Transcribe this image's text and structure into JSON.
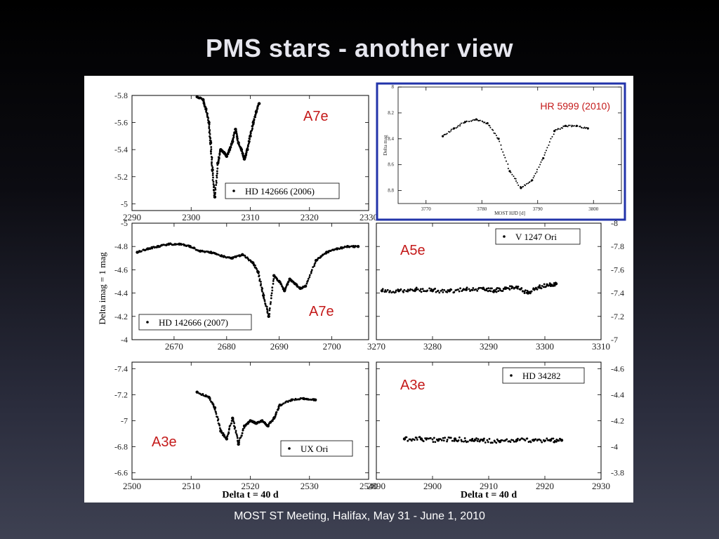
{
  "title": "PMS stars - another view",
  "footer": "MOST ST Meeting, Halifax, May 31 - June 1, 2010",
  "colors": {
    "inset_border": "#2233aa",
    "overlay_text": "#c41a1a",
    "points": "#000000"
  },
  "chart_data": [
    {
      "type": "scatter",
      "legend": "HD 142666 (2006)",
      "overlay_label": "A7e",
      "x_ticks": [
        "2290",
        "2300",
        "2310",
        "2320",
        "2330"
      ],
      "y_ticks": [
        "-5.8",
        "-5.6",
        "-5.4",
        "-5.2",
        "-5"
      ],
      "xlim": [
        2290,
        2330
      ],
      "ylim": [
        -5.8,
        -4.95
      ],
      "series": [
        {
          "x": [
            2301,
            2302,
            2302.5,
            2303,
            2303.3,
            2303.6,
            2304,
            2304.5,
            2305,
            2305.5,
            2306,
            2306.5,
            2307,
            2307.5,
            2308,
            2308.5,
            2309,
            2309.5,
            2310,
            2310.5,
            2311,
            2311.5
          ],
          "y": [
            -5.79,
            -5.77,
            -5.7,
            -5.6,
            -5.45,
            -5.25,
            -5.05,
            -5.3,
            -5.4,
            -5.38,
            -5.35,
            -5.4,
            -5.46,
            -5.55,
            -5.45,
            -5.4,
            -5.33,
            -5.4,
            -5.5,
            -5.6,
            -5.68,
            -5.74
          ]
        }
      ]
    },
    {
      "type": "scatter",
      "title": "HR 5999 (2010)",
      "ylabel": "Delta mag",
      "xlabel": "MOST HJD [d]",
      "x_ticks": [
        "3770",
        "3780",
        "3790",
        "3800"
      ],
      "y_ticks": [
        "8",
        "8.2",
        "8.4",
        "8.6",
        "8.8"
      ],
      "xlim": [
        3765,
        3805
      ],
      "ylim": [
        8.0,
        8.9
      ],
      "series": [
        {
          "x": [
            3773,
            3775,
            3777,
            3779,
            3781,
            3783,
            3785,
            3787,
            3789,
            3791,
            3793,
            3795,
            3797,
            3799
          ],
          "y": [
            8.38,
            8.32,
            8.27,
            8.25,
            8.28,
            8.4,
            8.65,
            8.78,
            8.72,
            8.55,
            8.34,
            8.3,
            8.3,
            8.32
          ]
        }
      ]
    },
    {
      "type": "scatter",
      "legend": "HD 142666 (2007)",
      "overlay_label": "A5e",
      "overlay_label_2": "A7e",
      "ylabel": "Delta imag = 1 mag",
      "x_ticks": [
        "2670",
        "2680",
        "2690",
        "2700"
      ],
      "y_ticks": [
        "-5",
        "-4.8",
        "-4.6",
        "-4.4",
        "-4.2",
        "-4"
      ],
      "xlim": [
        2662,
        2707
      ],
      "ylim": [
        -5.0,
        -4.0
      ],
      "series": [
        {
          "x": [
            2663,
            2665,
            2667,
            2669,
            2671,
            2673,
            2675,
            2677,
            2679,
            2681,
            2683,
            2685,
            2686,
            2687,
            2688,
            2689,
            2690,
            2691,
            2692,
            2693,
            2694,
            2695,
            2697,
            2699,
            2701,
            2703,
            2705
          ],
          "y": [
            -4.75,
            -4.78,
            -4.8,
            -4.82,
            -4.82,
            -4.8,
            -4.76,
            -4.75,
            -4.72,
            -4.7,
            -4.73,
            -4.66,
            -4.58,
            -4.38,
            -4.2,
            -4.55,
            -4.5,
            -4.42,
            -4.52,
            -4.48,
            -4.44,
            -4.46,
            -4.68,
            -4.75,
            -4.78,
            -4.8,
            -4.8
          ]
        }
      ]
    },
    {
      "type": "scatter",
      "legend": "V 1247 Ori",
      "x_ticks": [
        "3270",
        "3280",
        "3290",
        "3300",
        "3310"
      ],
      "y_ticks": [
        "-8",
        "-7.8",
        "-7.6",
        "-7.4",
        "-7.2",
        "-7"
      ],
      "xlim": [
        3270,
        3310
      ],
      "ylim": [
        -8.0,
        -7.0
      ],
      "series": [
        {
          "x": [
            3271,
            3274,
            3277,
            3280,
            3283,
            3286,
            3289,
            3291,
            3293,
            3295,
            3297,
            3299,
            3301,
            3302
          ],
          "y": [
            -7.42,
            -7.42,
            -7.43,
            -7.42,
            -7.42,
            -7.43,
            -7.44,
            -7.42,
            -7.44,
            -7.45,
            -7.4,
            -7.45,
            -7.47,
            -7.48
          ]
        }
      ]
    },
    {
      "type": "scatter",
      "legend": "UX Ori",
      "overlay_label": "A3e",
      "x_ticks": [
        "2500",
        "2510",
        "2520",
        "2530",
        "2540"
      ],
      "y_ticks": [
        "-7.4",
        "-7.2",
        "-7",
        "-6.8",
        "-6.6"
      ],
      "xlabel": "Delta t = 40 d",
      "xlim": [
        2500,
        2540
      ],
      "ylim": [
        -7.45,
        -6.55
      ],
      "series": [
        {
          "x": [
            2511,
            2513,
            2514,
            2515,
            2516,
            2517,
            2518,
            2519,
            2520,
            2521,
            2522,
            2523,
            2524,
            2525,
            2527,
            2529,
            2531
          ],
          "y": [
            -7.22,
            -7.18,
            -7.1,
            -6.92,
            -6.86,
            -7.02,
            -6.82,
            -6.96,
            -7.0,
            -6.98,
            -7.0,
            -6.96,
            -7.02,
            -7.12,
            -7.16,
            -7.17,
            -7.16
          ]
        }
      ]
    },
    {
      "type": "scatter",
      "legend": "HD 34282",
      "overlay_label": "A3e",
      "x_ticks": [
        "2890",
        "2900",
        "2910",
        "2920",
        "2930"
      ],
      "y_ticks": [
        "-4.6",
        "-4.4",
        "-4.2",
        "-4",
        "-3.8"
      ],
      "xlabel": "Delta t = 40 d",
      "xlim": [
        2890,
        2930
      ],
      "ylim": [
        -4.65,
        -3.75
      ],
      "series": [
        {
          "x": [
            2895,
            2898,
            2901,
            2904,
            2907,
            2909,
            2912,
            2915,
            2918,
            2921,
            2923
          ],
          "y": [
            -4.06,
            -4.06,
            -4.05,
            -4.06,
            -4.05,
            -4.05,
            -4.04,
            -4.05,
            -4.05,
            -4.05,
            -4.05
          ]
        }
      ]
    }
  ]
}
